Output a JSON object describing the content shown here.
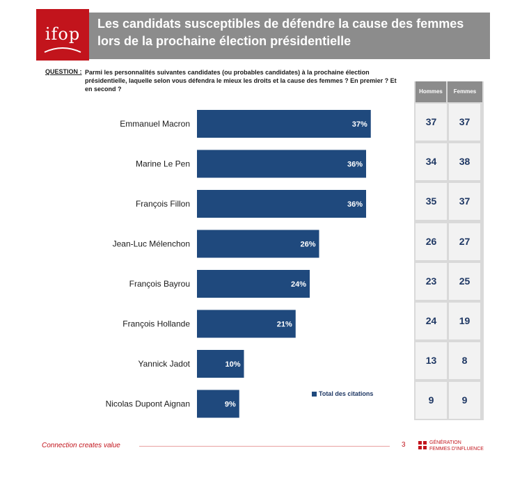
{
  "header": {
    "logo_text": "ifop",
    "title": "Les candidats susceptibles de défendre la cause des femmes lors de la prochaine élection présidentielle"
  },
  "question": {
    "label": "QUESTION :",
    "text": "Parmi les personnalités suivantes candidates (ou probables candidates) à la prochaine élection présidentielle, laquelle selon vous défendra le mieux les droits et la cause des femmes ? En premier ? Et en second ?"
  },
  "chart_data": {
    "type": "bar",
    "orientation": "horizontal",
    "categories": [
      "Emmanuel Macron",
      "Marine Le Pen",
      "François Fillon",
      "Jean-Luc Mélenchon",
      "François Bayrou",
      "François Hollande",
      "Yannick Jadot",
      "Nicolas Dupont Aignan"
    ],
    "series": [
      {
        "name": "Total des citations",
        "values": [
          37,
          36,
          36,
          26,
          24,
          21,
          10,
          9
        ],
        "labels": [
          "37%",
          "36%",
          "36%",
          "26%",
          "24%",
          "21%",
          "10%",
          "9%"
        ],
        "color": "#1f497d"
      }
    ],
    "legend": "Total des citations",
    "legend_position": "bottom-right",
    "xlim": [
      0,
      40
    ]
  },
  "table": {
    "headers": [
      "Hommes",
      "Femmes"
    ],
    "rows": [
      [
        "37",
        "37"
      ],
      [
        "34",
        "38"
      ],
      [
        "35",
        "37"
      ],
      [
        "26",
        "27"
      ],
      [
        "23",
        "25"
      ],
      [
        "24",
        "19"
      ],
      [
        "13",
        "8"
      ],
      [
        "9",
        "9"
      ]
    ]
  },
  "footer": {
    "tagline": "Connection creates value",
    "page": "3",
    "brand_line1": "GÉNÉRATION",
    "brand_line2": "FEMMES D'INFLUENCE"
  },
  "colors": {
    "bar": "#1f497d",
    "header_bg": "#8c8c8c",
    "logo_bg": "#c2141c",
    "table_text": "#1f3864"
  }
}
